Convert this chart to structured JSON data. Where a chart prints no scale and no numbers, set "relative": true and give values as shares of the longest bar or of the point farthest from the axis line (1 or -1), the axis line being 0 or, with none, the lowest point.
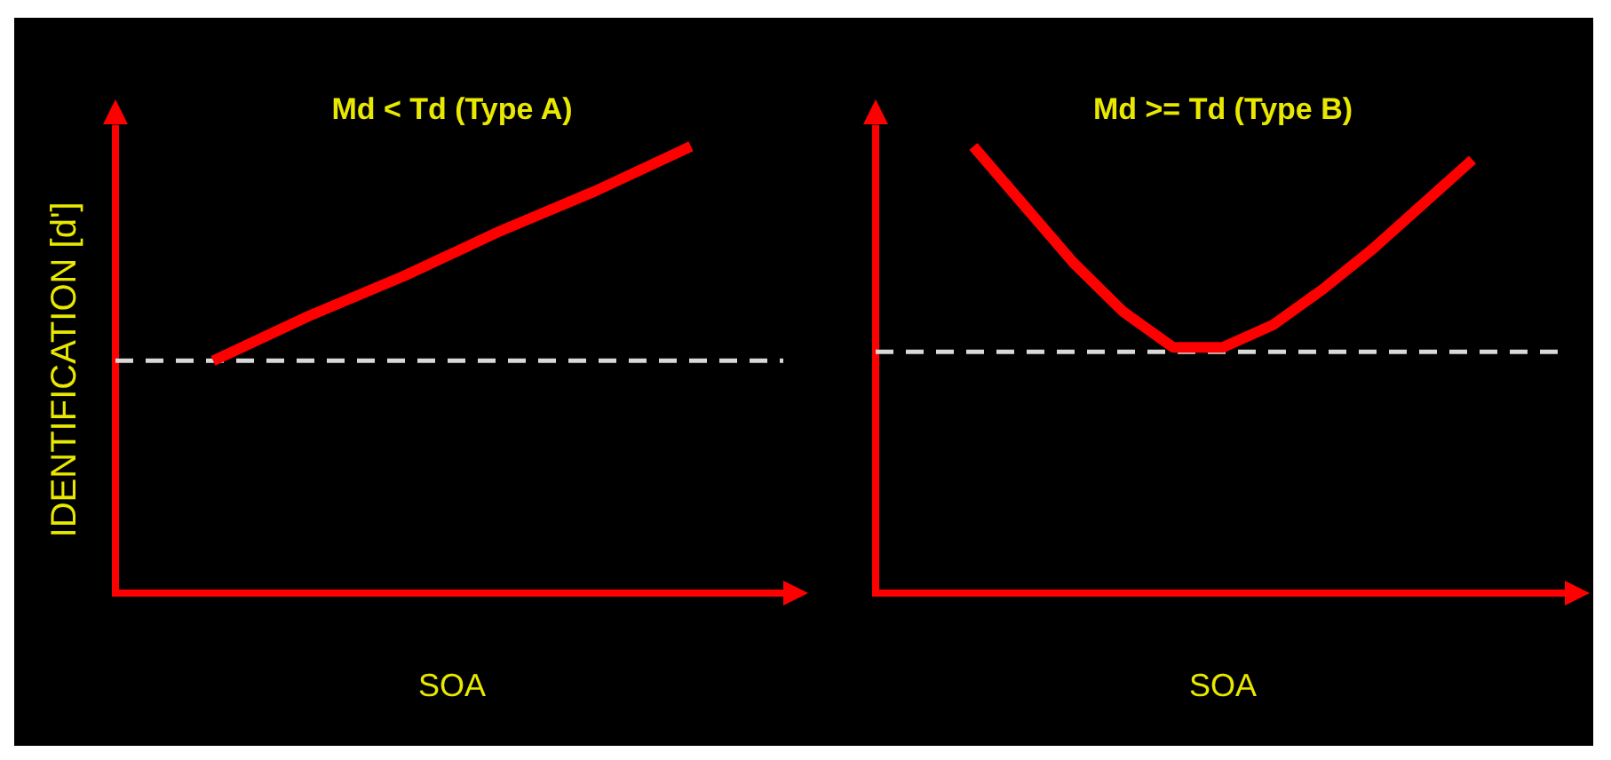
{
  "chart_data": [
    {
      "type": "line",
      "title": "Md < Td (Type A)",
      "xlabel": "SOA",
      "ylabel": "IDENTIFICATION [d']",
      "relative": true,
      "categories": [
        null,
        null,
        null,
        null,
        null,
        null
      ],
      "series": [
        {
          "color": "#ff0000",
          "values": [
            0.52,
            0.62,
            0.71,
            0.81,
            0.9,
            1.0
          ]
        }
      ],
      "ref_lines": [
        {
          "axis": "y",
          "value": 0.52,
          "color": "#d9d9d9",
          "line_style": "dashed"
        }
      ]
    },
    {
      "type": "line",
      "title": "Md >= Td (Type B)",
      "xlabel": "SOA",
      "relative": true,
      "categories": [
        null,
        null,
        null,
        null,
        null,
        null,
        null,
        null,
        null,
        null,
        null
      ],
      "series": [
        {
          "color": "#ff0000",
          "values": [
            1.0,
            0.87,
            0.74,
            0.63,
            0.55,
            0.55,
            0.6,
            0.68,
            0.77,
            0.87,
            0.97
          ]
        }
      ],
      "ref_lines": [
        {
          "axis": "y",
          "value": 0.54,
          "color": "#d9d9d9",
          "line_style": "dashed"
        }
      ]
    }
  ]
}
